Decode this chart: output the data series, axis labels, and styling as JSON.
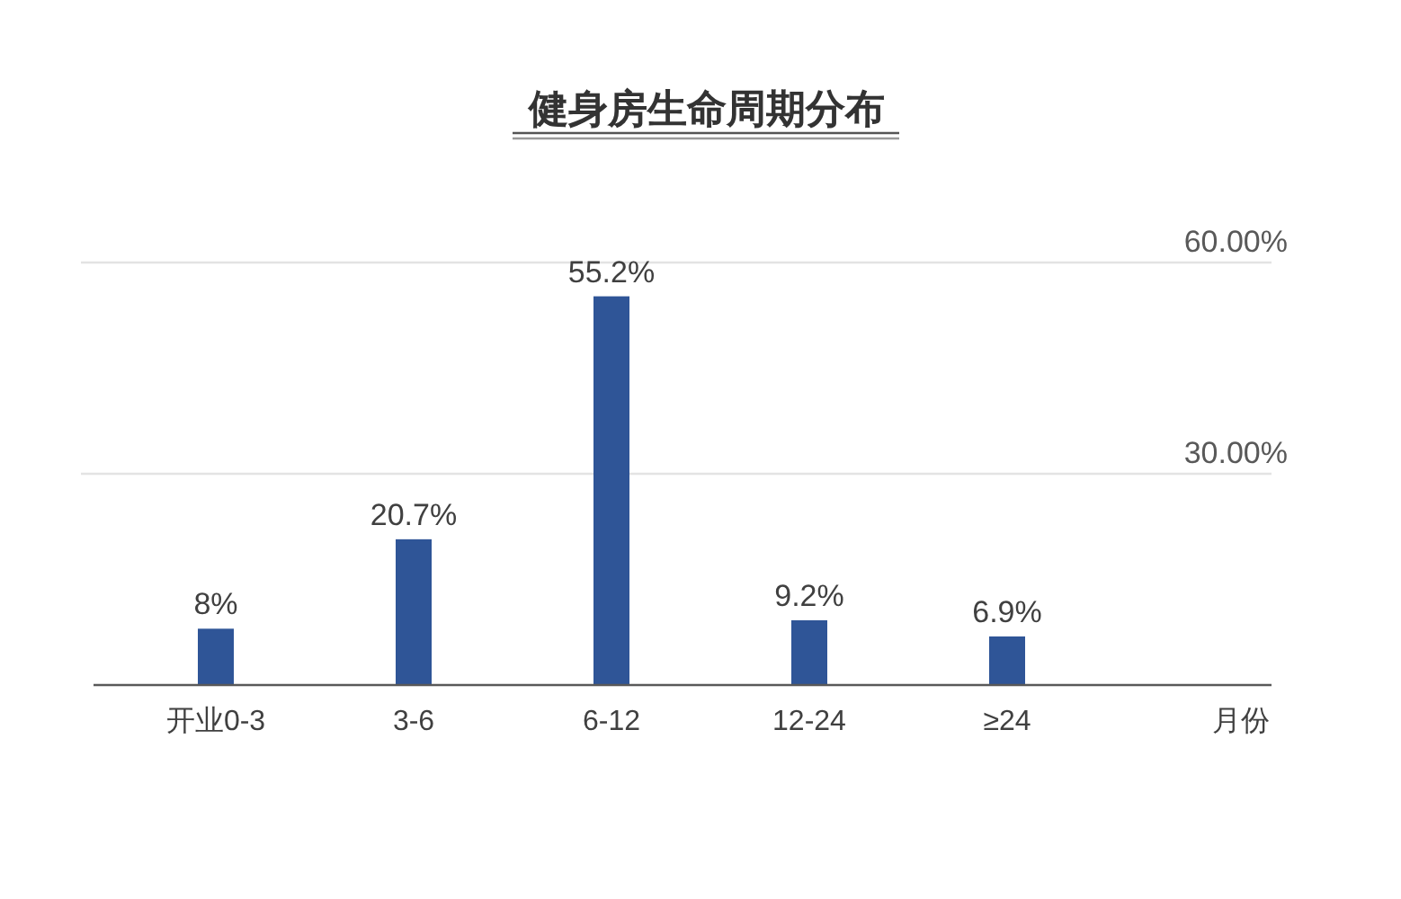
{
  "chart_data": {
    "type": "bar",
    "title": "健身房生命周期分布",
    "xlabel": "月份",
    "categories": [
      "开业0-3",
      "3-6",
      "6-12",
      "12-24",
      "≥24"
    ],
    "values": [
      8,
      20.7,
      55.2,
      9.2,
      6.9
    ],
    "color": "#2f5597",
    "value_labels": [
      "8%",
      "20.7%",
      "55.2%",
      "9.2%",
      "6.9%"
    ],
    "ylim": [
      0,
      60
    ],
    "yticks": [
      {
        "value": 30,
        "label": "30.00%"
      },
      {
        "value": 60,
        "label": "60.00%"
      }
    ],
    "grid": "y"
  }
}
